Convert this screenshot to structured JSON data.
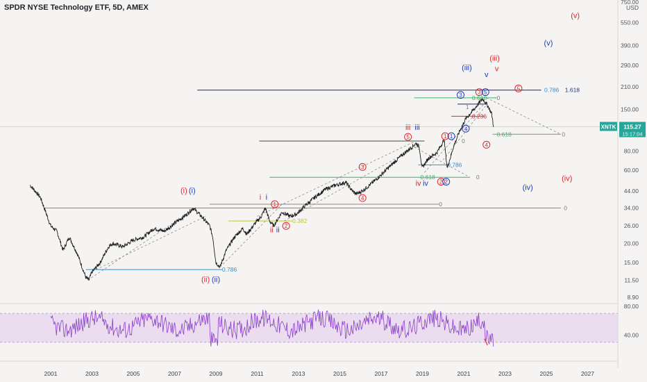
{
  "header": {
    "title": "SPDR NYSE Technology ETF, 5D, AMEX"
  },
  "chart_data": {
    "type": "line",
    "symbol": "XNTK",
    "last_price": "115.27",
    "countdown": "15:17:04",
    "currency": "USD",
    "price_axis": {
      "scale": "log",
      "ticks": [
        750,
        550,
        390,
        290,
        210,
        150,
        110,
        80,
        60,
        44,
        34,
        26,
        20,
        15,
        11.5,
        8.9
      ],
      "tick_labels": [
        "750.00",
        "550.00",
        "390.00",
        "290.00",
        "210.00",
        "150.00",
        "",
        "80.00",
        "60.00",
        "44.00",
        "34.00",
        "26.00",
        "20.00",
        "15.00",
        "11.50",
        "8.90"
      ]
    },
    "x_axis": {
      "ticks": [
        2001,
        2003,
        2005,
        2007,
        2009,
        2011,
        2013,
        2015,
        2017,
        2019,
        2021,
        2023,
        2025,
        2027
      ],
      "tick_labels": [
        "2001",
        "2003",
        "2005",
        "2007",
        "2009",
        "2011",
        "2013",
        "2015",
        "2017",
        "2019",
        "2021",
        "2023",
        "2025",
        "2027"
      ]
    },
    "series": [
      {
        "values_anchor": [
          [
            2000.0,
            48
          ],
          [
            2000.5,
            40
          ],
          [
            2001.0,
            26
          ],
          [
            2001.3,
            24
          ],
          [
            2001.6,
            18
          ],
          [
            2001.9,
            22
          ],
          [
            2002.3,
            17
          ],
          [
            2002.7,
            12
          ],
          [
            2002.85,
            11.5
          ],
          [
            2003.0,
            13
          ],
          [
            2003.4,
            15
          ],
          [
            2003.8,
            19
          ],
          [
            2004.0,
            20
          ],
          [
            2004.5,
            19
          ],
          [
            2005.0,
            21
          ],
          [
            2005.5,
            22
          ],
          [
            2006.0,
            25
          ],
          [
            2006.5,
            24
          ],
          [
            2007.0,
            27
          ],
          [
            2007.6,
            31
          ],
          [
            2007.9,
            34
          ],
          [
            2008.3,
            30
          ],
          [
            2008.7,
            26
          ],
          [
            2008.85,
            22
          ],
          [
            2009.0,
            15
          ],
          [
            2009.2,
            14
          ],
          [
            2009.5,
            18
          ],
          [
            2009.9,
            22
          ],
          [
            2010.3,
            25
          ],
          [
            2010.5,
            23
          ],
          [
            2010.9,
            27
          ],
          [
            2011.2,
            30
          ],
          [
            2011.4,
            34
          ],
          [
            2011.6,
            28
          ],
          [
            2011.8,
            26
          ],
          [
            2012.2,
            32
          ],
          [
            2012.6,
            30
          ],
          [
            2012.9,
            31
          ],
          [
            2013.3,
            35
          ],
          [
            2013.8,
            40
          ],
          [
            2014.3,
            45
          ],
          [
            2014.8,
            48
          ],
          [
            2015.3,
            50
          ],
          [
            2015.6,
            44
          ],
          [
            2015.8,
            42
          ],
          [
            2016.1,
            44
          ],
          [
            2016.6,
            50
          ],
          [
            2017.0,
            56
          ],
          [
            2017.5,
            65
          ],
          [
            2018.0,
            75
          ],
          [
            2018.7,
            90
          ],
          [
            2018.85,
            85
          ],
          [
            2018.98,
            62
          ],
          [
            2019.3,
            72
          ],
          [
            2019.7,
            78
          ],
          [
            2020.05,
            95
          ],
          [
            2020.2,
            62
          ],
          [
            2020.5,
            85
          ],
          [
            2020.8,
            108
          ],
          [
            2021.1,
            130
          ],
          [
            2021.5,
            150
          ],
          [
            2021.9,
            175
          ],
          [
            2022.0,
            170
          ],
          [
            2022.2,
            155
          ],
          [
            2022.35,
            140
          ],
          [
            2022.45,
            115
          ]
        ]
      }
    ],
    "rsi": {
      "ticks": [
        80,
        40
      ],
      "tick_labels": [
        "80.00",
        "40.00"
      ],
      "band": [
        30,
        70
      ]
    },
    "labels": {
      "i_red": "(i)",
      "i_blue": "(i)",
      "ii_red": "(ii)",
      "ii_blue": "(ii)",
      "iii_red": "(iii)",
      "iii_blue": "(iii)",
      "iv_red": "(iv)",
      "iv_blue": "(iv)",
      "v_red": "(v)",
      "v_blue": "(v)",
      "r_i": "i",
      "b_i": "i",
      "r_ii": "ii",
      "b_ii": "ii",
      "r_iii": "iii",
      "b_iii": "iii",
      "r_iv": "iv",
      "b_iv": "iv",
      "r_v": "v",
      "b_v": "v",
      "n1": "1",
      "n2": "2",
      "n3": "3",
      "n4": "4",
      "n5": "5",
      "fib_1618": "1.618",
      "fib_0786": "0.786",
      "fib_0618": "0.618",
      "fib_0382": "0.382",
      "fib_0236": "0.236",
      "fib_0": "0",
      "fib_1": "1"
    },
    "colors": {
      "red": "#e0262c",
      "blue": "#1f3bb3",
      "series": "#1e1e1e",
      "rsi": "#8a3fc9",
      "rsi_band": "#e8d6ef",
      "green": "#35b56a",
      "olive": "#b6c53a",
      "lightblue": "#2a8fd6",
      "navy": "#1a237e"
    }
  }
}
